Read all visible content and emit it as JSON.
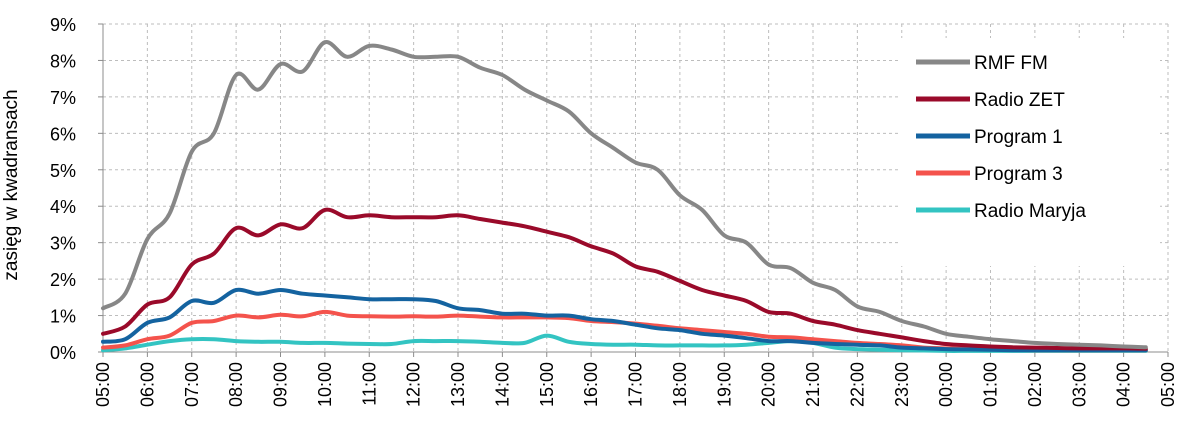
{
  "chart_data": {
    "type": "line",
    "title": "",
    "xlabel": "",
    "ylabel": "zasięg w kwadransach",
    "ylim": [
      0,
      9
    ],
    "y_unit": "%",
    "y_ticks": [
      "0%",
      "1%",
      "2%",
      "3%",
      "4%",
      "5%",
      "6%",
      "7%",
      "8%",
      "9%"
    ],
    "x_ticks": [
      "05:00",
      "06:00",
      "07:00",
      "08:00",
      "09:00",
      "10:00",
      "11:00",
      "12:00",
      "13:00",
      "14:00",
      "15:00",
      "16:00",
      "17:00",
      "18:00",
      "19:00",
      "20:00",
      "21:00",
      "22:00",
      "23:00",
      "00:00",
      "01:00",
      "02:00",
      "03:00",
      "04:00",
      "05:00"
    ],
    "grid": true,
    "legend_position": "top-right",
    "x_hours": [
      5,
      5.5,
      6,
      6.5,
      7,
      7.5,
      8,
      8.5,
      9,
      9.5,
      10,
      10.5,
      11,
      11.5,
      12,
      12.5,
      13,
      13.5,
      14,
      14.5,
      15,
      15.5,
      16,
      16.5,
      17,
      17.5,
      18,
      18.5,
      19,
      19.5,
      20,
      20.5,
      21,
      21.5,
      22,
      22.5,
      23,
      23.5,
      24,
      24.5,
      25,
      25.5,
      26,
      26.5,
      27,
      27.5,
      28,
      28.5
    ],
    "series": [
      {
        "name": "RMF FM",
        "color": "#878787",
        "values": [
          1.2,
          1.6,
          3.1,
          3.8,
          5.5,
          6.0,
          7.6,
          7.2,
          7.9,
          7.7,
          8.5,
          8.1,
          8.4,
          8.3,
          8.1,
          8.1,
          8.1,
          7.8,
          7.6,
          7.2,
          6.9,
          6.6,
          6.0,
          5.6,
          5.2,
          5.0,
          4.3,
          3.9,
          3.2,
          3.0,
          2.4,
          2.3,
          1.9,
          1.7,
          1.25,
          1.1,
          0.85,
          0.7,
          0.5,
          0.42,
          0.35,
          0.3,
          0.25,
          0.22,
          0.2,
          0.18,
          0.15,
          0.13
        ]
      },
      {
        "name": "Radio ZET",
        "color": "#9a0a2a",
        "values": [
          0.5,
          0.7,
          1.3,
          1.5,
          2.4,
          2.7,
          3.4,
          3.2,
          3.5,
          3.4,
          3.9,
          3.7,
          3.75,
          3.7,
          3.7,
          3.7,
          3.75,
          3.65,
          3.55,
          3.45,
          3.3,
          3.15,
          2.9,
          2.7,
          2.35,
          2.2,
          1.95,
          1.7,
          1.55,
          1.4,
          1.1,
          1.05,
          0.85,
          0.75,
          0.6,
          0.5,
          0.4,
          0.3,
          0.22,
          0.18,
          0.15,
          0.13,
          0.12,
          0.11,
          0.1,
          0.1,
          0.1,
          0.09
        ]
      },
      {
        "name": "Program 1",
        "color": "#1463a0",
        "values": [
          0.28,
          0.35,
          0.8,
          0.95,
          1.4,
          1.35,
          1.7,
          1.6,
          1.7,
          1.6,
          1.55,
          1.5,
          1.45,
          1.45,
          1.45,
          1.4,
          1.2,
          1.15,
          1.05,
          1.05,
          1.0,
          1.0,
          0.9,
          0.85,
          0.75,
          0.65,
          0.6,
          0.5,
          0.45,
          0.38,
          0.3,
          0.3,
          0.25,
          0.22,
          0.2,
          0.18,
          0.12,
          0.1,
          0.08,
          0.07,
          0.06,
          0.05,
          0.05,
          0.05,
          0.05,
          0.05,
          0.05,
          0.05
        ]
      },
      {
        "name": "Program 3",
        "color": "#f4534c",
        "values": [
          0.12,
          0.18,
          0.35,
          0.45,
          0.8,
          0.85,
          1.0,
          0.95,
          1.02,
          0.98,
          1.1,
          1.0,
          0.98,
          0.97,
          0.98,
          0.97,
          1.0,
          0.97,
          0.95,
          0.95,
          0.95,
          0.93,
          0.85,
          0.82,
          0.78,
          0.72,
          0.65,
          0.6,
          0.55,
          0.5,
          0.42,
          0.4,
          0.35,
          0.3,
          0.25,
          0.22,
          0.18,
          0.12,
          0.1,
          0.08,
          0.07,
          0.06,
          0.05,
          0.05,
          0.05,
          0.05,
          0.05,
          0.05
        ]
      },
      {
        "name": "Radio Maryja",
        "color": "#33c4c2",
        "values": [
          0.05,
          0.1,
          0.2,
          0.3,
          0.35,
          0.35,
          0.3,
          0.28,
          0.28,
          0.25,
          0.25,
          0.23,
          0.22,
          0.22,
          0.3,
          0.3,
          0.3,
          0.28,
          0.25,
          0.25,
          0.45,
          0.28,
          0.22,
          0.2,
          0.2,
          0.18,
          0.18,
          0.18,
          0.18,
          0.2,
          0.25,
          0.3,
          0.25,
          0.12,
          0.08,
          0.06,
          0.05,
          0.04,
          0.03,
          0.03,
          0.03,
          0.03,
          0.03,
          0.03,
          0.03,
          0.03,
          0.03,
          0.03
        ]
      }
    ]
  }
}
